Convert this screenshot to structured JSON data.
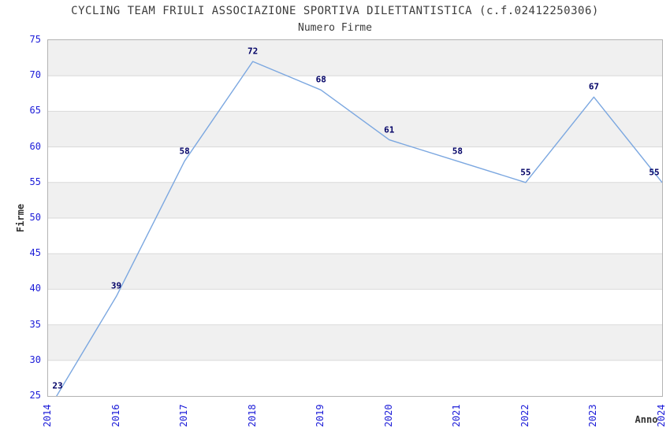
{
  "chart_data": {
    "type": "line",
    "title": "CYCLING TEAM FRIULI ASSOCIAZIONE SPORTIVA DILETTANTISTICA (c.f.02412250306)",
    "subtitle": "Numero Firme",
    "xlabel": "Anno",
    "ylabel": "Firme",
    "categories": [
      "2014",
      "2016",
      "2017",
      "2018",
      "2019",
      "2020",
      "2021",
      "2022",
      "2023",
      "2024"
    ],
    "values": [
      23,
      39,
      58,
      72,
      68,
      61,
      58,
      55,
      67,
      55
    ],
    "ylim": [
      25,
      75
    ],
    "ytick_step": 5,
    "yticks": [
      25,
      30,
      35,
      40,
      45,
      50,
      55,
      60,
      65,
      70,
      75
    ],
    "grid": "horizontal",
    "legend_position": "none",
    "colors": {
      "line": "#7ba7e0",
      "tick_label": "#1b1bd8",
      "value_label": "#000066",
      "band_fill": "#f0f0f0",
      "gridline": "#d9d9d9",
      "plot_border": "#b3b3b3",
      "title_text": "#3c3c3c",
      "axis_title_text": "#333333"
    }
  }
}
